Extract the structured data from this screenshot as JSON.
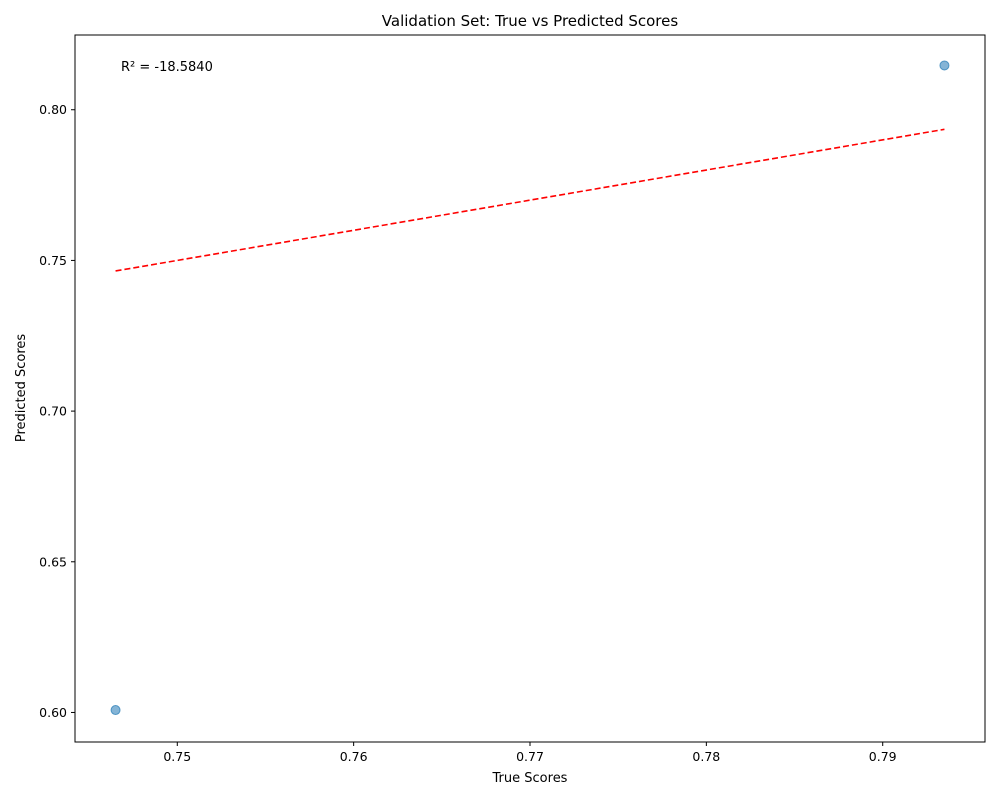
{
  "chart_data": {
    "type": "scatter",
    "title": "Validation Set: True vs Predicted Scores",
    "xlabel": "True Scores",
    "ylabel": "Predicted Scores",
    "xlim": [
      0.7442,
      0.7958
    ],
    "ylim": [
      0.5902,
      0.8248
    ],
    "xticks": [
      0.75,
      0.76,
      0.77,
      0.78,
      0.79
    ],
    "xtick_labels": [
      "0.75",
      "0.76",
      "0.77",
      "0.78",
      "0.79"
    ],
    "yticks": [
      0.6,
      0.65,
      0.7,
      0.75,
      0.8
    ],
    "ytick_labels": [
      "0.60",
      "0.65",
      "0.70",
      "0.75",
      "0.80"
    ],
    "grid": false,
    "points": [
      {
        "x": 0.7465,
        "y": 0.6008
      },
      {
        "x": 0.7935,
        "y": 0.8147
      }
    ],
    "fit_line": {
      "x": [
        0.7465,
        0.7935
      ],
      "y": [
        0.7465,
        0.7935
      ],
      "color": "#ff0000",
      "style": "dashed"
    },
    "point_color": "#1f77b4",
    "annotation": "R² = -18.5840"
  }
}
